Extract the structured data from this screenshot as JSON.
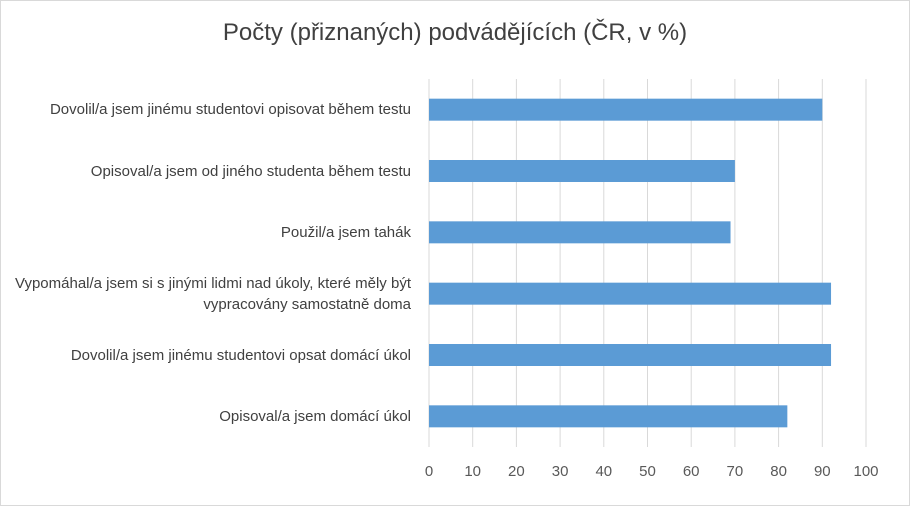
{
  "chart_data": {
    "type": "bar",
    "orientation": "horizontal",
    "title": "Počty (přiznaných) podvádějících (ČR, v %)",
    "categories": [
      "Dovolil/a jsem jinému studentovi opisovat během testu",
      "Opisoval/a jsem od jiného studenta během testu",
      "Použil/a jsem tahák",
      "Vypomáhal/a jsem si s jinými lidmi nad úkoly, které měly být vypracovány samostatně doma",
      "Dovolil/a jsem jinému studentovi opsat domácí úkol",
      "Opisoval/a jsem domácí úkol"
    ],
    "values": [
      90,
      70,
      69,
      92,
      92,
      82
    ],
    "xlim": [
      0,
      100
    ],
    "xticks": [
      "0",
      "10",
      "20",
      "30",
      "40",
      "50",
      "60",
      "70",
      "80",
      "90",
      "100"
    ],
    "grid": true,
    "bar_color": "#5b9bd5",
    "grid_color": "#d9d9d9"
  }
}
